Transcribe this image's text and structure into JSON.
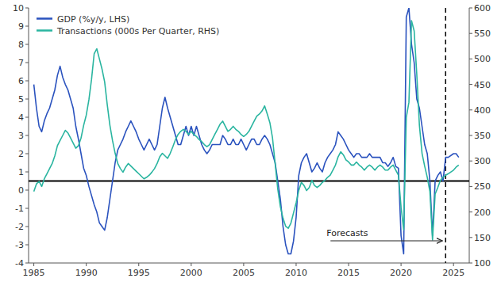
{
  "chart_data": {
    "type": "line",
    "x": [
      1985,
      1985.25,
      1985.5,
      1985.75,
      1986,
      1986.25,
      1986.5,
      1986.75,
      1987,
      1987.25,
      1987.5,
      1987.75,
      1988,
      1988.25,
      1988.5,
      1988.75,
      1989,
      1989.25,
      1989.5,
      1989.75,
      1990,
      1990.25,
      1990.5,
      1990.75,
      1991,
      1991.25,
      1991.5,
      1991.75,
      1992,
      1992.25,
      1992.5,
      1992.75,
      1993,
      1993.25,
      1993.5,
      1993.75,
      1994,
      1994.25,
      1994.5,
      1994.75,
      1995,
      1995.25,
      1995.5,
      1995.75,
      1996,
      1996.25,
      1996.5,
      1996.75,
      1997,
      1997.25,
      1997.5,
      1997.75,
      1998,
      1998.25,
      1998.5,
      1998.75,
      1999,
      1999.25,
      1999.5,
      1999.75,
      2000,
      2000.25,
      2000.5,
      2000.75,
      2001,
      2001.25,
      2001.5,
      2001.75,
      2002,
      2002.25,
      2002.5,
      2002.75,
      2003,
      2003.25,
      2003.5,
      2003.75,
      2004,
      2004.25,
      2004.5,
      2004.75,
      2005,
      2005.25,
      2005.5,
      2005.75,
      2006,
      2006.25,
      2006.5,
      2006.75,
      2007,
      2007.25,
      2007.5,
      2007.75,
      2008,
      2008.25,
      2008.5,
      2008.75,
      2009,
      2009.25,
      2009.5,
      2009.75,
      2010,
      2010.25,
      2010.5,
      2010.75,
      2011,
      2011.25,
      2011.5,
      2011.75,
      2012,
      2012.25,
      2012.5,
      2012.75,
      2013,
      2013.25,
      2013.5,
      2013.75,
      2014,
      2014.25,
      2014.5,
      2014.75,
      2015,
      2015.25,
      2015.5,
      2015.75,
      2016,
      2016.25,
      2016.5,
      2016.75,
      2017,
      2017.25,
      2017.5,
      2017.75,
      2018,
      2018.25,
      2018.5,
      2018.75,
      2019,
      2019.25,
      2019.5,
      2019.75,
      2020,
      2020.25,
      2020.5,
      2020.75,
      2021,
      2021.25,
      2021.5,
      2021.75,
      2022,
      2022.25,
      2022.5,
      2022.75,
      2023,
      2023.25,
      2023.5,
      2023.75,
      2024,
      2024.25,
      2024.5,
      2025,
      2025.25,
      2025.5
    ],
    "series": [
      {
        "name": "GDP (%y/y, LHS)",
        "color": "#2a52be",
        "values": [
          5.8,
          4.5,
          3.5,
          3.2,
          3.8,
          4.2,
          4.5,
          5.0,
          5.5,
          6.3,
          6.8,
          6.2,
          5.8,
          5.5,
          5.0,
          4.5,
          3.5,
          2.8,
          2.0,
          1.2,
          0.8,
          0.2,
          -0.3,
          -0.8,
          -1.2,
          -1.8,
          -2.0,
          -2.2,
          -1.5,
          -0.5,
          0.5,
          1.5,
          2.2,
          2.5,
          2.8,
          3.2,
          3.5,
          3.8,
          3.5,
          3.2,
          2.8,
          2.5,
          2.2,
          2.5,
          2.8,
          2.5,
          2.2,
          2.5,
          3.5,
          4.5,
          5.1,
          4.5,
          4.0,
          3.5,
          3.0,
          2.5,
          2.5,
          3.0,
          3.5,
          3.0,
          3.5,
          3.0,
          3.5,
          3.0,
          2.5,
          2.2,
          2.0,
          2.2,
          2.5,
          2.5,
          2.5,
          2.5,
          3.0,
          2.8,
          2.5,
          2.5,
          2.8,
          2.5,
          2.5,
          2.8,
          2.5,
          2.2,
          2.5,
          2.8,
          2.8,
          2.5,
          2.5,
          2.8,
          3.0,
          2.8,
          2.5,
          2.0,
          1.5,
          0.5,
          -0.5,
          -2.0,
          -3.0,
          -3.5,
          -3.5,
          -2.8,
          -1.5,
          0.8,
          1.5,
          1.8,
          2.0,
          1.5,
          1.0,
          1.2,
          1.5,
          1.2,
          1.0,
          1.5,
          1.8,
          2.0,
          2.2,
          2.5,
          3.2,
          3.0,
          2.8,
          2.5,
          2.2,
          2.0,
          1.8,
          2.0,
          2.0,
          1.8,
          1.8,
          1.8,
          2.0,
          1.8,
          1.8,
          1.8,
          1.8,
          1.5,
          1.5,
          1.3,
          1.5,
          1.8,
          1.3,
          1.2,
          -2.5,
          -3.5,
          9.5,
          10.0,
          8.0,
          7.0,
          5.0,
          4.5,
          3.5,
          2.5,
          2.0,
          0.5,
          -2.5,
          0.5,
          0.8,
          1.0,
          0.5,
          1.8,
          1.8,
          2.0,
          2.0,
          1.8
        ]
      },
      {
        "name": "Transactions (000s Per Quarter, RHS)",
        "color": "#2ab5a0",
        "axis": "y2",
        "values": [
          240,
          255,
          260,
          250,
          265,
          275,
          285,
          295,
          310,
          330,
          340,
          350,
          360,
          355,
          345,
          335,
          325,
          330,
          345,
          370,
          390,
          420,
          460,
          510,
          520,
          500,
          480,
          455,
          410,
          370,
          340,
          315,
          295,
          285,
          278,
          288,
          295,
          290,
          285,
          280,
          275,
          270,
          265,
          268,
          272,
          278,
          285,
          295,
          308,
          315,
          310,
          305,
          315,
          328,
          342,
          352,
          358,
          362,
          358,
          352,
          358,
          352,
          348,
          342,
          338,
          332,
          328,
          332,
          342,
          352,
          362,
          372,
          378,
          368,
          358,
          362,
          368,
          362,
          358,
          352,
          348,
          352,
          358,
          368,
          378,
          388,
          392,
          398,
          408,
          392,
          375,
          345,
          295,
          245,
          210,
          188,
          172,
          168,
          178,
          198,
          218,
          242,
          258,
          252,
          242,
          248,
          262,
          252,
          248,
          252,
          258,
          262,
          268,
          272,
          282,
          292,
          308,
          318,
          312,
          302,
          298,
          292,
          292,
          298,
          292,
          288,
          282,
          288,
          292,
          288,
          282,
          288,
          292,
          288,
          282,
          282,
          288,
          292,
          282,
          272,
          210,
          165,
          385,
          415,
          575,
          555,
          470,
          370,
          315,
          290,
          268,
          240,
          145,
          235,
          248,
          262,
          268,
          272,
          275,
          282,
          288,
          292
        ]
      }
    ],
    "xlim": [
      1984.5,
      2026.5
    ],
    "xticks": [
      1985,
      1990,
      1995,
      2000,
      2005,
      2010,
      2015,
      2020,
      2025
    ],
    "ylim": [
      -4,
      10
    ],
    "yticks": [
      -4,
      -3,
      -2,
      -1,
      0,
      1,
      2,
      3,
      4,
      5,
      6,
      7,
      8,
      9,
      10
    ],
    "y2lim": [
      100,
      600
    ],
    "y2ticks": [
      100,
      150,
      200,
      250,
      300,
      350,
      400,
      450,
      500,
      550,
      600
    ],
    "annotations": [
      {
        "type": "hline",
        "y": 0.5
      },
      {
        "type": "vline",
        "x": 2024.25,
        "line_style": "dashed",
        "text": "Forecasts"
      }
    ],
    "grid": false,
    "legend": "upper left"
  }
}
